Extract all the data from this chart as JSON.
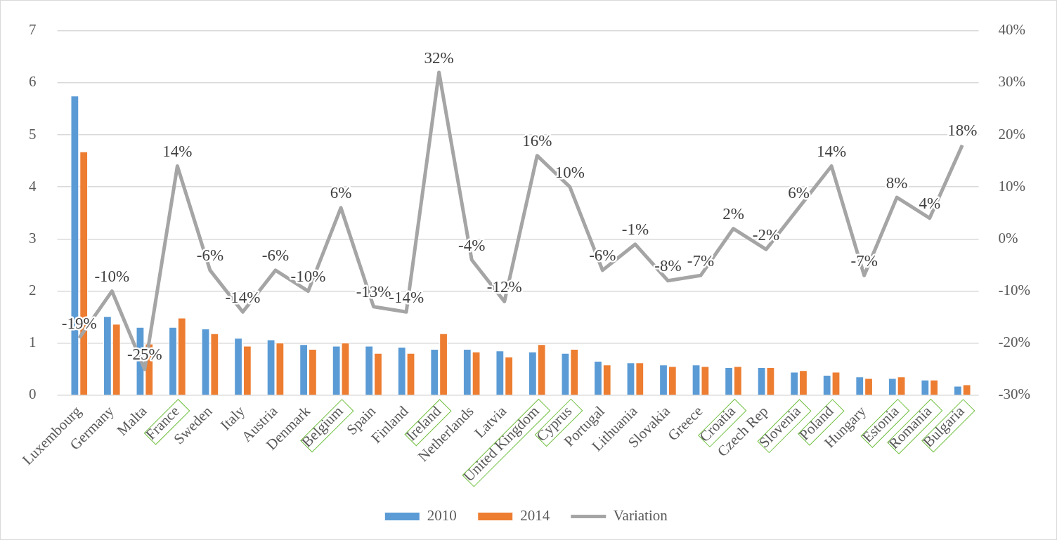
{
  "chart_data": {
    "type": "bar",
    "categories": [
      "Luxembourg",
      "Germany",
      "Malta",
      "France",
      "Sweden",
      "Italy",
      "Austria",
      "Denmark",
      "Belgium",
      "Spain",
      "Finland",
      "Ireland",
      "Netherlands",
      "Latvia",
      "United Kingdom",
      "Cyprus",
      "Portugal",
      "Lithuania",
      "Slovakia",
      "Greece",
      "Croatia",
      "Czech Rep",
      "Slovenia",
      "Poland",
      "Hungary",
      "Estonia",
      "Romania",
      "Bulgaria"
    ],
    "series": [
      {
        "name": "2010",
        "color": "#5b9bd5",
        "values": [
          5.75,
          1.52,
          1.31,
          1.31,
          1.28,
          1.1,
          1.07,
          0.98,
          0.95,
          0.95,
          0.93,
          0.89,
          0.89,
          0.86,
          0.84,
          0.81,
          0.66,
          0.63,
          0.59,
          0.59,
          0.54,
          0.54,
          0.45,
          0.39,
          0.36,
          0.33,
          0.3,
          0.18
        ]
      },
      {
        "name": "2014",
        "color": "#ed7d31",
        "values": [
          4.68,
          1.37,
          0.99,
          1.49,
          1.19,
          0.95,
          1.01,
          0.89,
          1.01,
          0.81,
          0.81,
          1.19,
          0.84,
          0.74,
          0.98,
          0.89,
          0.59,
          0.63,
          0.56,
          0.56,
          0.56,
          0.54,
          0.48,
          0.45,
          0.33,
          0.36,
          0.3,
          0.21
        ]
      },
      {
        "name": "Variation",
        "type": "line",
        "axis": "y2",
        "color": "#a5a5a5",
        "values": [
          -19,
          -10,
          -25,
          14,
          -6,
          -14,
          -6,
          -10,
          6,
          -13,
          -14,
          32,
          -4,
          -12,
          16,
          10,
          -6,
          -1,
          -8,
          -7,
          2,
          -2,
          6,
          14,
          -7,
          8,
          4,
          18
        ],
        "value_labels": [
          "-19%",
          "-10%",
          "-25%",
          "14%",
          "-6%",
          "-14%",
          "-6%",
          "-10%",
          "6%",
          "-13%",
          "-14%",
          "32%",
          "-4%",
          "-12%",
          "16%",
          "10%",
          "-6%",
          "-1%",
          "-8%",
          "-7%",
          "2%",
          "-2%",
          "6%",
          "14%",
          "-7%",
          "8%",
          "4%",
          "18%"
        ]
      }
    ],
    "ylim": [
      0,
      7
    ],
    "yticks": [
      0,
      1,
      2,
      3,
      4,
      5,
      6,
      7
    ],
    "y2lim": [
      -30,
      40
    ],
    "y2ticks": [
      {
        "value": -30,
        "label": "-30%"
      },
      {
        "value": -20,
        "label": "-20%"
      },
      {
        "value": -10,
        "label": "-10%"
      },
      {
        "value": 0,
        "label": "0%"
      },
      {
        "value": 10,
        "label": "10%"
      },
      {
        "value": 20,
        "label": "20%"
      },
      {
        "value": 30,
        "label": "30%"
      },
      {
        "value": 40,
        "label": "40%"
      }
    ],
    "grid": "y",
    "legend": "bottom",
    "marker": "none",
    "line_style": "solid"
  }
}
